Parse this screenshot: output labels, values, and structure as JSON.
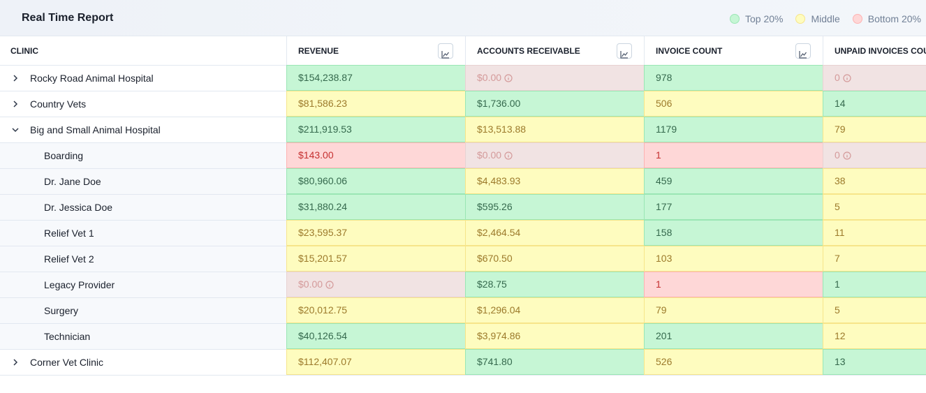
{
  "header": {
    "title": "Real Time Report",
    "legend": [
      {
        "label": "Top 20%",
        "color": "#c6f6d5",
        "border": "#9ae6b4",
        "text_color": "#35694d"
      },
      {
        "label": "Middle",
        "color": "#fefcbf",
        "border": "#f6e58a",
        "text_color": "#9c7a2b"
      },
      {
        "label": "Bottom 20%",
        "color": "#fed7d7",
        "border": "#feb2b2",
        "text_color": "#c53030"
      }
    ]
  },
  "table": {
    "columns": [
      "CLINIC",
      "REVENUE",
      "ACCOUNTS RECEIVABLE",
      "INVOICE COUNT",
      "UNPAID INVOICES COUNT"
    ],
    "empty_cell": {
      "color": "#f1e3e3",
      "border": "#e8d2d2",
      "text_color": "#d49a9a"
    },
    "rows": [
      {
        "name": "Rocky Road Animal Hospital",
        "expanded": false,
        "cells": [
          {
            "text": "$154,238.87",
            "color": "#c6f6d5"
          },
          {
            "text": "$0.00",
            "color": "#f1e3e3"
          },
          {
            "text": "978",
            "color": "#c6f6d5"
          },
          {
            "text": "0",
            "color": "#f1e3e3"
          }
        ]
      },
      {
        "name": "Country Vets",
        "expanded": false,
        "cells": [
          {
            "text": "$81,586.23",
            "color": "#fefcbf"
          },
          {
            "text": "$1,736.00",
            "color": "#c6f6d5"
          },
          {
            "text": "506",
            "color": "#fefcbf"
          },
          {
            "text": "14",
            "color": "#c6f6d5"
          }
        ]
      },
      {
        "name": "Big and Small Animal Hospital",
        "expanded": true,
        "cells": [
          {
            "text": "$211,919.53",
            "color": "#c6f6d5"
          },
          {
            "text": "$13,513.88",
            "color": "#fefcbf"
          },
          {
            "text": "1179",
            "color": "#c6f6d5"
          },
          {
            "text": "79",
            "color": "#fefcbf"
          }
        ],
        "children": [
          {
            "name": "Boarding",
            "cells": [
              {
                "text": "$143.00",
                "color": "#fed7d7"
              },
              {
                "text": "$0.00",
                "color": "#f1e3e3"
              },
              {
                "text": "1",
                "color": "#fed7d7"
              },
              {
                "text": "0",
                "color": "#f1e3e3"
              }
            ]
          },
          {
            "name": "Dr. Jane Doe",
            "cells": [
              {
                "text": "$80,960.06",
                "color": "#c6f6d5"
              },
              {
                "text": "$4,483.93",
                "color": "#fefcbf"
              },
              {
                "text": "459",
                "color": "#c6f6d5"
              },
              {
                "text": "38",
                "color": "#fefcbf"
              }
            ]
          },
          {
            "name": "Dr. Jessica Doe",
            "cells": [
              {
                "text": "$31,880.24",
                "color": "#c6f6d5"
              },
              {
                "text": "$595.26",
                "color": "#c6f6d5"
              },
              {
                "text": "177",
                "color": "#c6f6d5"
              },
              {
                "text": "5",
                "color": "#fefcbf"
              }
            ]
          },
          {
            "name": "Relief Vet 1",
            "cells": [
              {
                "text": "$23,595.37",
                "color": "#fefcbf"
              },
              {
                "text": "$2,464.54",
                "color": "#fefcbf"
              },
              {
                "text": "158",
                "color": "#c6f6d5"
              },
              {
                "text": "11",
                "color": "#fefcbf"
              }
            ]
          },
          {
            "name": "Relief Vet 2",
            "cells": [
              {
                "text": "$15,201.57",
                "color": "#fefcbf"
              },
              {
                "text": "$670.50",
                "color": "#fefcbf"
              },
              {
                "text": "103",
                "color": "#fefcbf"
              },
              {
                "text": "7",
                "color": "#fefcbf"
              }
            ]
          },
          {
            "name": "Legacy Provider",
            "cells": [
              {
                "text": "$0.00",
                "color": "#f1e3e3"
              },
              {
                "text": "$28.75",
                "color": "#c6f6d5"
              },
              {
                "text": "1",
                "color": "#fed7d7"
              },
              {
                "text": "1",
                "color": "#c6f6d5"
              }
            ]
          },
          {
            "name": "Surgery",
            "cells": [
              {
                "text": "$20,012.75",
                "color": "#fefcbf"
              },
              {
                "text": "$1,296.04",
                "color": "#fefcbf"
              },
              {
                "text": "79",
                "color": "#fefcbf"
              },
              {
                "text": "5",
                "color": "#fefcbf"
              }
            ]
          },
          {
            "name": "Technician",
            "cells": [
              {
                "text": "$40,126.54",
                "color": "#c6f6d5"
              },
              {
                "text": "$3,974.86",
                "color": "#fefcbf"
              },
              {
                "text": "201",
                "color": "#c6f6d5"
              },
              {
                "text": "12",
                "color": "#fefcbf"
              }
            ]
          }
        ]
      },
      {
        "name": "Corner Vet Clinic",
        "expanded": false,
        "cells": [
          {
            "text": "$112,407.07",
            "color": "#fefcbf"
          },
          {
            "text": "$741.80",
            "color": "#c6f6d5"
          },
          {
            "text": "526",
            "color": "#fefcbf"
          },
          {
            "text": "13",
            "color": "#c6f6d5"
          }
        ]
      }
    ]
  }
}
